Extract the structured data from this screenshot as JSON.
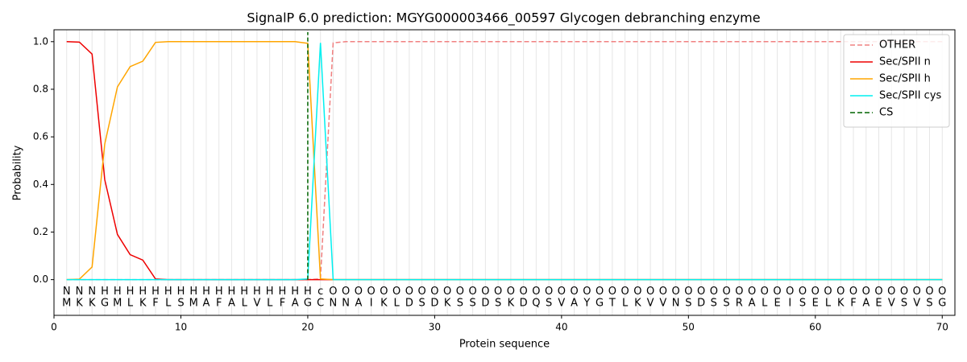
{
  "chart_data": {
    "type": "line",
    "title": "SignalP 6.0 prediction: MGYG000003466_00597 Glycogen debranching enzyme",
    "x_label": "Protein sequence",
    "y_label": "Probability",
    "x": [
      1,
      2,
      3,
      4,
      5,
      6,
      7,
      8,
      9,
      10,
      11,
      12,
      13,
      14,
      15,
      16,
      17,
      18,
      19,
      20,
      21,
      22,
      23,
      24,
      25,
      26,
      27,
      28,
      29,
      30,
      31,
      32,
      33,
      34,
      35,
      36,
      37,
      38,
      39,
      40,
      41,
      42,
      43,
      44,
      45,
      46,
      47,
      48,
      49,
      50,
      51,
      52,
      53,
      54,
      55,
      56,
      57,
      58,
      59,
      60,
      61,
      62,
      63,
      64,
      65,
      66,
      67,
      68,
      69,
      70
    ],
    "sequence": [
      "M",
      "K",
      "K",
      "G",
      "M",
      "L",
      "K",
      "F",
      "L",
      "S",
      "M",
      "A",
      "F",
      "A",
      "L",
      "V",
      "L",
      "F",
      "A",
      "G",
      "C",
      "N",
      "N",
      "A",
      "I",
      "K",
      "L",
      "D",
      "S",
      "D",
      "K",
      "S",
      "S",
      "D",
      "S",
      "K",
      "D",
      "Q",
      "S",
      "V",
      "A",
      "Y",
      "G",
      "T",
      "L",
      "K",
      "V",
      "V",
      "N",
      "S",
      "D",
      "S",
      "S",
      "R",
      "A",
      "L",
      "E",
      "I",
      "S",
      "E",
      "L",
      "K",
      "F",
      "A",
      "E",
      "V",
      "S",
      "V",
      "S",
      "G"
    ],
    "labels": [
      "N",
      "N",
      "N",
      "H",
      "H",
      "H",
      "H",
      "H",
      "H",
      "H",
      "H",
      "H",
      "H",
      "H",
      "H",
      "H",
      "H",
      "H",
      "H",
      "H",
      "c",
      "O",
      "O",
      "O",
      "O",
      "O",
      "O",
      "O",
      "O",
      "O",
      "O",
      "O",
      "O",
      "O",
      "O",
      "O",
      "O",
      "O",
      "O",
      "O",
      "O",
      "O",
      "O",
      "O",
      "O",
      "O",
      "O",
      "O",
      "O",
      "O",
      "O",
      "O",
      "O",
      "O",
      "O",
      "O",
      "O",
      "O",
      "O",
      "O",
      "O",
      "O",
      "O",
      "O",
      "O",
      "O",
      "O",
      "O",
      "O",
      "O"
    ],
    "label_colors": {
      "N": "#ff0000",
      "H": "#ffa500",
      "c": "#00e5ee",
      "O": "#808080"
    },
    "series": [
      {
        "name": "OTHER",
        "color": "#f08080",
        "dashed": true,
        "values": [
          0,
          0,
          0,
          0,
          0,
          0,
          0,
          0,
          0,
          0,
          0,
          0,
          0,
          0,
          0,
          0,
          0,
          0,
          0,
          0,
          0.003,
          0.995,
          1,
          1,
          1,
          1,
          1,
          1,
          1,
          1,
          1,
          1,
          1,
          1,
          1,
          1,
          1,
          1,
          1,
          1,
          1,
          1,
          1,
          1,
          1,
          1,
          1,
          1,
          1,
          1,
          1,
          1,
          1,
          1,
          1,
          1,
          1,
          1,
          1,
          1,
          1,
          1,
          1,
          1,
          1,
          1,
          1,
          1,
          1,
          1
        ]
      },
      {
        "name": "Sec/SPII n",
        "color": "#ee0000",
        "values": [
          1.0,
          0.998,
          0.948,
          0.42,
          0.19,
          0.105,
          0.082,
          0.003,
          0,
          0,
          0,
          0,
          0,
          0,
          0,
          0,
          0,
          0,
          0,
          0,
          0,
          0,
          0,
          0,
          0,
          0,
          0,
          0,
          0,
          0,
          0,
          0,
          0,
          0,
          0,
          0,
          0,
          0,
          0,
          0,
          0,
          0,
          0,
          0,
          0,
          0,
          0,
          0,
          0,
          0,
          0,
          0,
          0,
          0,
          0,
          0,
          0,
          0,
          0,
          0,
          0,
          0,
          0,
          0,
          0,
          0,
          0,
          0,
          0,
          0
        ]
      },
      {
        "name": "Sec/SPII h",
        "color": "#ffa500",
        "values": [
          0,
          0.002,
          0.053,
          0.57,
          0.81,
          0.895,
          0.918,
          0.997,
          1,
          1,
          1,
          1,
          1,
          1,
          1,
          1,
          1,
          1,
          1,
          0.993,
          0.003,
          0,
          0,
          0,
          0,
          0,
          0,
          0,
          0,
          0,
          0,
          0,
          0,
          0,
          0,
          0,
          0,
          0,
          0,
          0,
          0,
          0,
          0,
          0,
          0,
          0,
          0,
          0,
          0,
          0,
          0,
          0,
          0,
          0,
          0,
          0,
          0,
          0,
          0,
          0,
          0,
          0,
          0,
          0,
          0,
          0,
          0,
          0,
          0,
          0
        ]
      },
      {
        "name": "Sec/SPII cys",
        "color": "#00f0f0",
        "values": [
          0,
          0,
          0,
          0,
          0,
          0,
          0,
          0,
          0,
          0,
          0,
          0,
          0,
          0,
          0,
          0,
          0,
          0,
          0,
          0.003,
          0.995,
          0,
          0,
          0,
          0,
          0,
          0,
          0,
          0,
          0,
          0,
          0,
          0,
          0,
          0,
          0,
          0,
          0,
          0,
          0,
          0,
          0,
          0,
          0,
          0,
          0,
          0,
          0,
          0,
          0,
          0,
          0,
          0,
          0,
          0,
          0,
          0,
          0,
          0,
          0,
          0,
          0,
          0,
          0,
          0,
          0,
          0,
          0,
          0,
          0
        ]
      }
    ],
    "cs": {
      "name": "CS",
      "x": 20,
      "color": "#006400"
    },
    "xlim": [
      0,
      71
    ],
    "ylim": [
      -0.15,
      1.05
    ],
    "xticks": [
      0,
      10,
      20,
      30,
      40,
      50,
      60,
      70
    ],
    "yticks": [
      {
        "value": 0,
        "label": "0.0"
      },
      0.2,
      0.4,
      0.6,
      0.8,
      {
        "value": 1,
        "label": "1.0"
      }
    ],
    "grid": true,
    "legend": "upper right"
  }
}
